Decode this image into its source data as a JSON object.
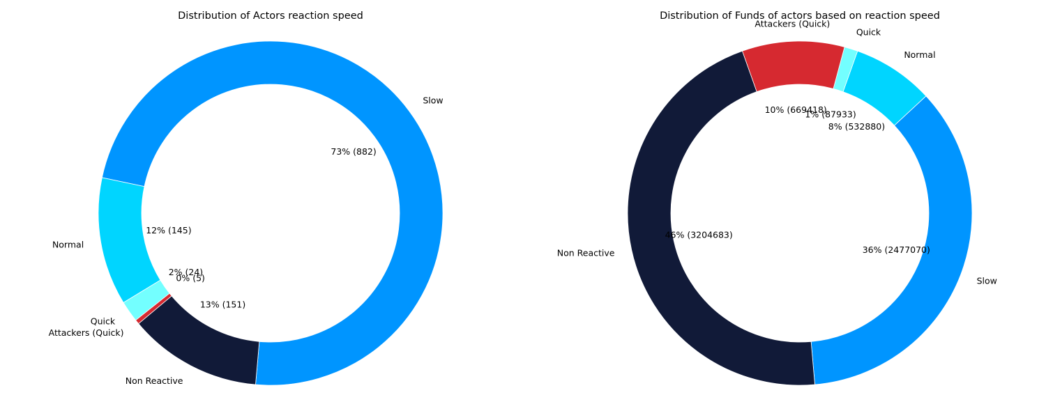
{
  "chart_data": [
    {
      "type": "pie",
      "donut": true,
      "title": "Distribution of Actors reaction speed",
      "slices": [
        {
          "label": "Slow",
          "value": 882,
          "pct_label": "73% (882)",
          "color": "#0095ff"
        },
        {
          "label": "Normal",
          "value": 145,
          "pct_label": "12% (145)",
          "color": "#00d5ff"
        },
        {
          "label": "Quick",
          "value": 24,
          "pct_label": "2% (24)",
          "color": "#73ffff"
        },
        {
          "label": "Attackers (Quick)",
          "value": 5,
          "pct_label": "0% (5)",
          "color": "#d62930"
        },
        {
          "label": "Non Reactive",
          "value": 151,
          "pct_label": "13% (151)",
          "color": "#111a38"
        }
      ]
    },
    {
      "type": "pie",
      "donut": true,
      "title": "Distribution of Funds of actors based on reaction speed",
      "slices": [
        {
          "label": "Slow",
          "value": 2477070,
          "pct_label": "36% (2477070)",
          "color": "#0095ff"
        },
        {
          "label": "Normal",
          "value": 532880,
          "pct_label": "8% (532880)",
          "color": "#00d5ff"
        },
        {
          "label": "Quick",
          "value": 87933,
          "pct_label": "1% (87933)",
          "color": "#73ffff"
        },
        {
          "label": "Attackers (Quick)",
          "value": 669418,
          "pct_label": "10% (669418)",
          "color": "#d62930"
        },
        {
          "label": "Non Reactive",
          "value": 3204683,
          "pct_label": "46% (3204683)",
          "color": "#111a38"
        }
      ]
    }
  ]
}
